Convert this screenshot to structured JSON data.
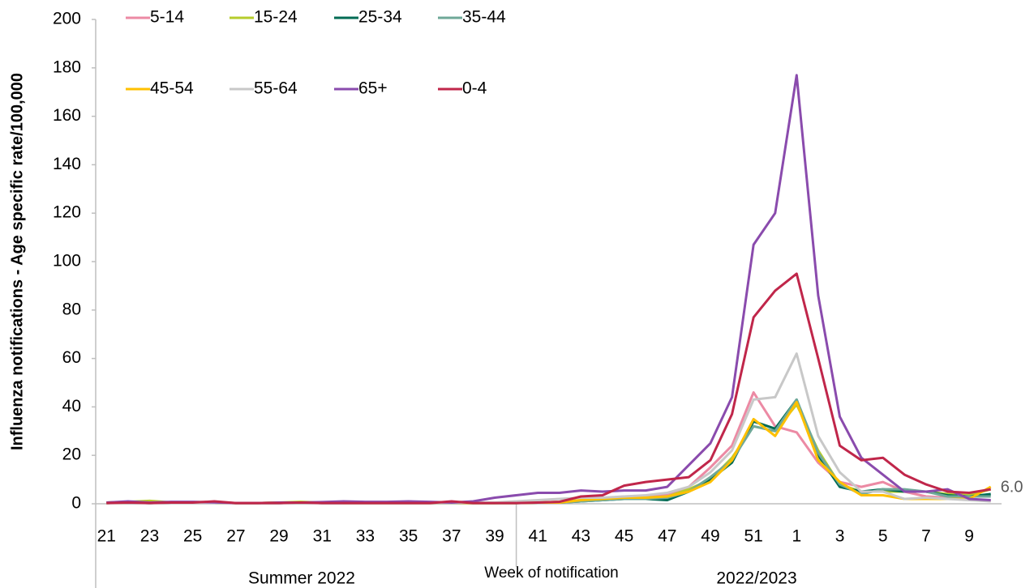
{
  "chart_data": {
    "type": "line",
    "y_label": "Influenza notifications - Age  specific rate/100,000",
    "x_label": "Week of notification",
    "x_groups": [
      "Summer 2022",
      "2022/2023"
    ],
    "categories": [
      "21",
      null,
      "23",
      null,
      "25",
      null,
      "27",
      null,
      "29",
      null,
      "31",
      null,
      "33",
      null,
      "35",
      null,
      "37",
      null,
      "39",
      null,
      "41",
      null,
      "43",
      null,
      "45",
      null,
      "47",
      null,
      "49",
      null,
      "51",
      null,
      "1",
      null,
      "3",
      null,
      "5",
      null,
      "7",
      null,
      "9",
      null
    ],
    "ylim": [
      0,
      200
    ],
    "yticks": [
      0,
      20,
      40,
      60,
      80,
      100,
      120,
      140,
      160,
      180,
      200
    ],
    "grid": false,
    "series": [
      {
        "name": "5-14",
        "color": "#ec8aa4",
        "values": [
          0.5,
          0.8,
          0.5,
          0.6,
          0.5,
          0.7,
          0.3,
          0.3,
          0.5,
          0.5,
          0.5,
          0.5,
          0.5,
          0.5,
          0.5,
          0.5,
          0.5,
          0.3,
          0.3,
          0.5,
          0.5,
          0.8,
          1,
          2,
          3,
          3,
          4,
          7,
          15,
          24,
          46,
          32,
          29.5,
          17,
          9,
          7,
          9,
          5,
          3,
          2.5,
          2,
          1
        ]
      },
      {
        "name": "15-24",
        "color": "#b6cc2c",
        "values": [
          0.5,
          0.8,
          1.2,
          0.6,
          0.5,
          0.5,
          0.3,
          0.3,
          0.5,
          0.8,
          0.5,
          0.5,
          0.5,
          0.5,
          0.5,
          0.5,
          0.5,
          0.3,
          0.3,
          0.5,
          0.5,
          0.8,
          1.5,
          2,
          2.5,
          2.5,
          3,
          6,
          10,
          19,
          32,
          30,
          41,
          22,
          8,
          5,
          5,
          5,
          5,
          4,
          3.5,
          6
        ],
        "value_labels": [
          null,
          null,
          null,
          null,
          null,
          null,
          null,
          null,
          null,
          null,
          null,
          null,
          null,
          null,
          null,
          null,
          null,
          null,
          null,
          null,
          null,
          null,
          null,
          null,
          null,
          null,
          null,
          null,
          null,
          null,
          null,
          null,
          null,
          null,
          null,
          null,
          null,
          null,
          null,
          null,
          null,
          "6.0"
        ]
      },
      {
        "name": "25-34",
        "color": "#006b54",
        "values": [
          0.3,
          0.5,
          0.3,
          0.5,
          0.5,
          0.5,
          0.3,
          0.3,
          0.3,
          0.5,
          0.3,
          0.3,
          0.3,
          0.3,
          0.3,
          0.3,
          0.3,
          0.3,
          0.3,
          0.3,
          0.5,
          0.5,
          1,
          1.5,
          2,
          2,
          1.5,
          5,
          10,
          17,
          34,
          31,
          43,
          20,
          7,
          5,
          6,
          5,
          5,
          3.5,
          3,
          4
        ]
      },
      {
        "name": "35-44",
        "color": "#6fa898",
        "values": [
          0.3,
          0.5,
          0.3,
          0.5,
          0.5,
          0.5,
          0.3,
          0.3,
          0.3,
          0.5,
          0.3,
          0.3,
          0.3,
          0.3,
          0.3,
          0.3,
          0.3,
          0.3,
          0.3,
          0.3,
          0.5,
          0.5,
          1,
          1.5,
          2,
          2,
          2.5,
          5,
          11,
          18,
          32,
          30,
          43,
          21,
          8,
          4,
          6,
          6,
          5,
          3,
          3,
          3
        ]
      },
      {
        "name": "45-54",
        "color": "#ffc000",
        "values": [
          0.3,
          0.5,
          0.5,
          0.5,
          0.5,
          0.5,
          0.3,
          0.3,
          0.5,
          0.5,
          0.5,
          0.3,
          0.3,
          0.3,
          0.3,
          0.3,
          0.3,
          0.3,
          0.3,
          0.3,
          0.5,
          0.5,
          1.5,
          2,
          2.5,
          2.5,
          3,
          5,
          9,
          18,
          35,
          28,
          42,
          18,
          9,
          3.5,
          3.5,
          2,
          2,
          2,
          2,
          7
        ]
      },
      {
        "name": "55-64",
        "color": "#c8c8c8",
        "values": [
          0.3,
          0.5,
          0.3,
          0.5,
          0.5,
          0.5,
          0.3,
          0.3,
          0.3,
          0.5,
          0.3,
          0.3,
          0.3,
          0.3,
          0.3,
          0.3,
          0.3,
          0.5,
          0.5,
          1,
          1.5,
          2,
          2.5,
          2.5,
          3,
          3.5,
          4.5,
          7,
          13,
          22,
          43,
          44,
          62,
          28,
          13,
          5,
          5,
          2,
          2.5,
          2,
          1.5,
          1
        ]
      },
      {
        "name": "65+",
        "color": "#8a4bad",
        "values": [
          0.5,
          1,
          0.5,
          0.8,
          0.8,
          0.6,
          0.3,
          0.3,
          0.5,
          0.5,
          0.7,
          1,
          0.8,
          0.8,
          1,
          0.8,
          0.5,
          1,
          2.5,
          3.5,
          4.5,
          4.5,
          5.5,
          5,
          5.5,
          5.5,
          7,
          16,
          25,
          44,
          107,
          120,
          177,
          86,
          36,
          19,
          12,
          5,
          5,
          6,
          2,
          1.5
        ]
      },
      {
        "name": "0-4",
        "color": "#c0264a",
        "values": [
          0.3,
          0.5,
          0.3,
          0.5,
          0.5,
          1,
          0.3,
          0.3,
          0.3,
          0.5,
          0.3,
          0.3,
          0.3,
          0.3,
          0.3,
          0.3,
          1,
          0.3,
          0.3,
          0.3,
          0.5,
          0.8,
          3,
          3.5,
          7.5,
          9,
          10,
          11,
          18,
          37,
          77,
          88,
          95,
          60,
          24,
          18,
          19,
          12,
          8,
          5,
          4.5,
          6
        ]
      }
    ]
  }
}
